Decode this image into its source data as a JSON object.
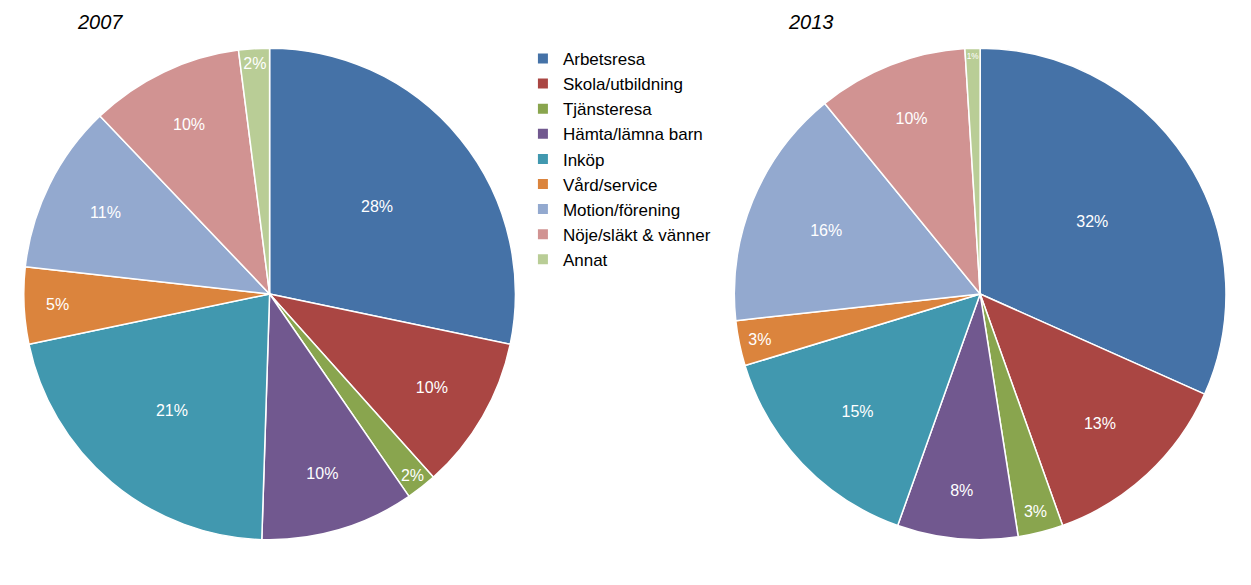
{
  "chart_data": [
    {
      "type": "pie",
      "title": "2007",
      "categories": [
        "Arbetsresa",
        "Skola/utbildning",
        "Tjänsteresa",
        "Hämta/lämna barn",
        "Inköp",
        "Vård/service",
        "Motion/förening",
        "Nöje/släkt & vänner",
        "Annat"
      ],
      "values": [
        28,
        10,
        2,
        10,
        21,
        5,
        11,
        10,
        2
      ],
      "value_labels": [
        "28%",
        "10%",
        "2%",
        "10%",
        "21%",
        "5%",
        "11%",
        "10%",
        "2%"
      ],
      "colors": [
        "#4572A7",
        "#AA4643",
        "#89A54E",
        "#71588F",
        "#4198AF",
        "#DB843D",
        "#93A9CF",
        "#D19392",
        "#B9CD96"
      ],
      "data_labels": true,
      "legend": "center"
    },
    {
      "type": "pie",
      "title": "2013",
      "categories": [
        "Arbetsresa",
        "Skola/utbildning",
        "Tjänsteresa",
        "Hämta/lämna barn",
        "Inköp",
        "Vård/service",
        "Motion/förening",
        "Nöje/släkt & vänner",
        "Annat"
      ],
      "values": [
        32,
        13,
        3,
        8,
        15,
        3,
        16,
        10,
        1
      ],
      "value_labels": [
        "32%",
        "13%",
        "3%",
        "8%",
        "15%",
        "3%",
        "16%",
        "10%",
        "1%"
      ],
      "colors": [
        "#4572A7",
        "#AA4643",
        "#89A54E",
        "#71588F",
        "#4198AF",
        "#DB843D",
        "#93A9CF",
        "#D19392",
        "#B9CD96"
      ],
      "data_labels": true
    }
  ]
}
